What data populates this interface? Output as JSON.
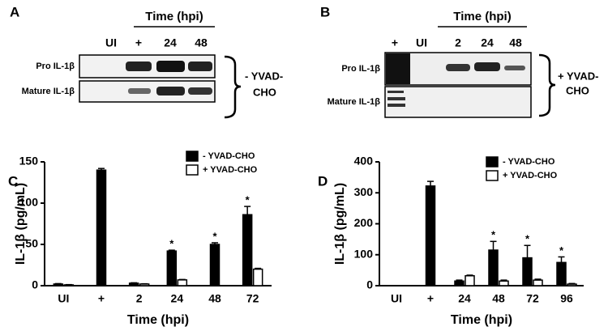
{
  "panel_labels": [
    "A",
    "B",
    "C",
    "D"
  ],
  "blots": [
    {
      "header": "Time (hpi)",
      "lanes": [
        "UI",
        "+",
        "24",
        "48"
      ],
      "rows": [
        "Pro IL-1β",
        "Mature IL-1β"
      ],
      "treatment": [
        "- YVAD-",
        "CHO"
      ]
    },
    {
      "header": "Time (hpi)",
      "lanes": [
        "+",
        "UI",
        "2",
        "24",
        "48"
      ],
      "rows": [
        "Pro IL-1β",
        "Mature IL-1β"
      ],
      "treatment": [
        "+ YVAD-",
        "CHO"
      ]
    }
  ],
  "chart_data": [
    {
      "type": "bar",
      "ylabel": "IL-1β (pg/mL)",
      "xlabel": "Time (hpi)",
      "categories": [
        "UI",
        "+",
        "2",
        "24",
        "48",
        "72"
      ],
      "series": [
        {
          "name": "- YVAD-CHO",
          "color": "#000000",
          "values": [
            2,
            140,
            3,
            42,
            50,
            86
          ],
          "errors": [
            0.5,
            2,
            0.5,
            1,
            2,
            10
          ],
          "significance": [
            null,
            null,
            null,
            "*",
            "*",
            "*"
          ]
        },
        {
          "name": "+ YVAD-CHO",
          "color": "#ffffff",
          "values": [
            1,
            null,
            2,
            7,
            null,
            20
          ],
          "errors": [
            0.3,
            null,
            0.3,
            0.5,
            null,
            1
          ]
        }
      ],
      "ylim": [
        0,
        150
      ],
      "yticks": [
        0,
        50,
        100,
        150
      ]
    },
    {
      "type": "bar",
      "ylabel": "IL-1β (pg/mL)",
      "xlabel": "Time (hpi)",
      "categories": [
        "UI",
        "+",
        "24",
        "48",
        "72",
        "96"
      ],
      "series": [
        {
          "name": "- YVAD-CHO",
          "color": "#000000",
          "values": [
            0,
            322,
            15,
            115,
            90,
            75
          ],
          "errors": [
            0,
            15,
            3,
            28,
            40,
            18
          ],
          "significance": [
            null,
            null,
            null,
            "*",
            "*",
            "*"
          ]
        },
        {
          "name": "+ YVAD-CHO",
          "color": "#ffffff",
          "values": [
            0,
            null,
            32,
            15,
            18,
            5
          ],
          "errors": [
            0,
            null,
            2,
            3,
            3,
            2
          ]
        }
      ],
      "ylim": [
        0,
        400
      ],
      "yticks": [
        0,
        100,
        200,
        300,
        400
      ]
    }
  ]
}
